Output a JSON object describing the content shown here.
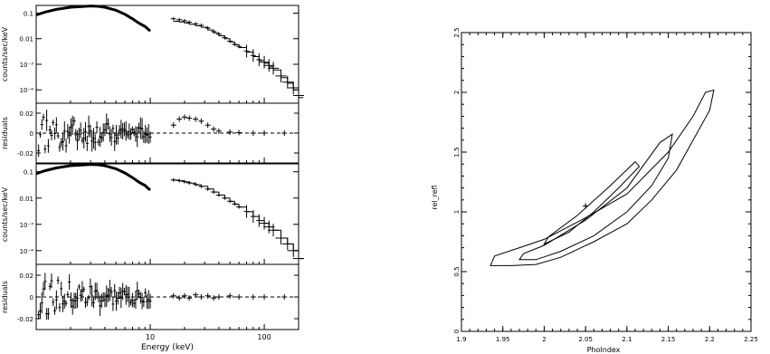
{
  "chart_data": [
    {
      "type": "scatter",
      "panel": "spectrum-top",
      "ylabel": "counts/sec/keV",
      "xscale": "log",
      "yscale": "log",
      "xlim": [
        1,
        200
      ],
      "ylim": [
        3e-05,
        0.2
      ],
      "yticks": [
        {
          "v": 0.1,
          "label": "0.1"
        },
        {
          "v": 0.01,
          "label": "0.01"
        },
        {
          "v": 0.001,
          "label": "10⁻³"
        },
        {
          "v": 0.0001,
          "label": "10⁻⁴"
        }
      ],
      "series": [
        {
          "kind": "low",
          "x": [
            1.0,
            1.2,
            1.5,
            2.0,
            2.5,
            3.0,
            3.5,
            4.0,
            5.0,
            6.0,
            7.0,
            8.0,
            9.0,
            10.0
          ],
          "y": [
            0.085,
            0.11,
            0.14,
            0.17,
            0.18,
            0.19,
            0.185,
            0.17,
            0.13,
            0.09,
            0.06,
            0.04,
            0.03,
            0.02
          ]
        },
        {
          "kind": "high",
          "x": [
            16,
            18,
            20,
            22,
            25,
            28,
            32,
            36,
            40,
            45,
            50,
            55,
            60,
            70,
            80,
            90,
            100,
            110,
            120,
            140,
            160,
            180,
            200
          ],
          "y": [
            0.048,
            0.045,
            0.041,
            0.037,
            0.032,
            0.028,
            0.022,
            0.017,
            0.013,
            0.01,
            0.0075,
            0.0058,
            0.0045,
            0.003,
            0.002,
            0.0014,
            0.0011,
            0.0008,
            0.0006,
            0.0003,
            0.00018,
            0.0001,
            5e-05
          ],
          "data_y": [
            0.06,
            0.055,
            0.05,
            0.044,
            0.038,
            0.033,
            0.026,
            0.019,
            0.015,
            0.011,
            0.008,
            0.006,
            0.005,
            0.0033,
            0.0022,
            0.0015,
            0.0012,
            0.0009,
            0.0007,
            0.00035,
            0.0002,
            0.00012,
            6e-05
          ]
        }
      ]
    },
    {
      "type": "scatter",
      "panel": "residuals-top",
      "ylabel": "residuals",
      "xscale": "log",
      "xlim": [
        1,
        200
      ],
      "ylim": [
        -0.03,
        0.03
      ],
      "yticks": [
        {
          "v": 0.02,
          "label": "0.02"
        },
        {
          "v": 0.0,
          "label": "0"
        },
        {
          "v": -0.02,
          "label": "-0.02"
        }
      ],
      "points": [
        [
          16,
          0.008
        ],
        [
          18,
          0.014
        ],
        [
          20,
          0.016
        ],
        [
          22,
          0.015
        ],
        [
          25,
          0.014
        ],
        [
          28,
          0.012
        ],
        [
          32,
          0.008
        ],
        [
          36,
          0.004
        ],
        [
          40,
          0.002
        ],
        [
          50,
          0.001
        ],
        [
          60,
          0.0005
        ],
        [
          80,
          0.0
        ],
        [
          100,
          0.0
        ],
        [
          150,
          0.0
        ]
      ]
    },
    {
      "type": "scatter",
      "panel": "spectrum-bottom",
      "ylabel": "counts/sec/keV",
      "xscale": "log",
      "yscale": "log",
      "xlim": [
        1,
        200
      ],
      "ylim": [
        3e-05,
        0.2
      ],
      "yticks": [
        {
          "v": 0.1,
          "label": "0.1"
        },
        {
          "v": 0.01,
          "label": "0.01"
        },
        {
          "v": 0.001,
          "label": "10⁻³"
        },
        {
          "v": 0.0001,
          "label": "10⁻⁴"
        }
      ],
      "series": [
        {
          "kind": "low",
          "x": [
            1.0,
            1.2,
            1.5,
            2.0,
            2.5,
            3.0,
            3.5,
            4.0,
            5.0,
            6.0,
            7.0,
            8.0,
            9.0,
            10.0
          ],
          "y": [
            0.085,
            0.11,
            0.14,
            0.17,
            0.18,
            0.19,
            0.185,
            0.17,
            0.13,
            0.09,
            0.06,
            0.04,
            0.03,
            0.02
          ]
        },
        {
          "kind": "high",
          "x": [
            16,
            18,
            20,
            22,
            25,
            28,
            32,
            36,
            40,
            45,
            50,
            55,
            60,
            70,
            80,
            90,
            100,
            110,
            120,
            140,
            160,
            180,
            200
          ],
          "y": [
            0.048,
            0.045,
            0.041,
            0.037,
            0.032,
            0.028,
            0.022,
            0.017,
            0.013,
            0.01,
            0.0075,
            0.0058,
            0.0045,
            0.003,
            0.002,
            0.0014,
            0.0011,
            0.0008,
            0.0006,
            0.0003,
            0.00018,
            0.0001,
            5e-05
          ],
          "data_y": [
            0.049,
            0.046,
            0.042,
            0.038,
            0.033,
            0.028,
            0.022,
            0.017,
            0.013,
            0.01,
            0.0076,
            0.006,
            0.0046,
            0.0031,
            0.002,
            0.0014,
            0.0011,
            0.0008,
            0.0006,
            0.0003,
            0.00018,
            0.0001,
            5e-05
          ]
        }
      ]
    },
    {
      "type": "scatter",
      "panel": "residuals-bottom",
      "ylabel": "residuals",
      "xlabel": "Energy (keV)",
      "xscale": "log",
      "xlim": [
        1,
        200
      ],
      "ylim": [
        -0.03,
        0.03
      ],
      "xticks": [
        {
          "v": 10,
          "label": "10"
        },
        {
          "v": 100,
          "label": "100"
        }
      ],
      "yticks": [
        {
          "v": 0.02,
          "label": "0.02"
        },
        {
          "v": 0.0,
          "label": "0"
        },
        {
          "v": -0.02,
          "label": "-0.02"
        }
      ],
      "points": [
        [
          16,
          0.001
        ],
        [
          18,
          -0.001
        ],
        [
          20,
          0.001
        ],
        [
          22,
          -0.001
        ],
        [
          25,
          0.002
        ],
        [
          28,
          0.0
        ],
        [
          32,
          0.001
        ],
        [
          36,
          -0.001
        ],
        [
          40,
          0.0
        ],
        [
          50,
          0.001
        ],
        [
          60,
          0.0
        ],
        [
          80,
          0.0
        ],
        [
          100,
          0.0
        ],
        [
          150,
          0.0
        ]
      ]
    },
    {
      "type": "line",
      "panel": "contour",
      "xlabel": "PhoIndex",
      "ylabel": "rel_refl",
      "xlim": [
        1.9,
        2.25
      ],
      "ylim": [
        0,
        2.5
      ],
      "xticks": [
        {
          "v": 1.9,
          "label": "1.9"
        },
        {
          "v": 1.95,
          "label": "1.95"
        },
        {
          "v": 2.0,
          "label": "2"
        },
        {
          "v": 2.05,
          "label": "2.05"
        },
        {
          "v": 2.1,
          "label": "2.1"
        },
        {
          "v": 2.15,
          "label": "2.15"
        },
        {
          "v": 2.2,
          "label": "2.2"
        },
        {
          "v": 2.25,
          "label": "2.25"
        }
      ],
      "yticks": [
        {
          "v": 0,
          "label": "0"
        },
        {
          "v": 0.5,
          "label": "0.5"
        },
        {
          "v": 1.0,
          "label": "1"
        },
        {
          "v": 1.5,
          "label": "1.5"
        },
        {
          "v": 2.0,
          "label": "2"
        },
        {
          "v": 2.5,
          "label": "2.5"
        }
      ],
      "best_fit": [
        2.05,
        1.05
      ],
      "series": [
        {
          "x": [
            1.935,
            1.94,
            1.97,
            2.0,
            2.05,
            2.1,
            2.15,
            2.18,
            2.195,
            2.205,
            2.2,
            2.18,
            2.16,
            2.13,
            2.1,
            2.06,
            2.02,
            1.99,
            1.96,
            1.935
          ],
          "y": [
            0.55,
            0.63,
            0.7,
            0.77,
            0.95,
            1.15,
            1.5,
            1.8,
            2.0,
            2.02,
            1.85,
            1.6,
            1.35,
            1.1,
            0.9,
            0.75,
            0.62,
            0.56,
            0.55,
            0.55
          ]
        },
        {
          "x": [
            1.97,
            1.975,
            2.0,
            2.05,
            2.1,
            2.14,
            2.155,
            2.15,
            2.13,
            2.1,
            2.06,
            2.02,
            1.99,
            1.97
          ],
          "y": [
            0.6,
            0.65,
            0.72,
            0.93,
            1.2,
            1.58,
            1.65,
            1.45,
            1.22,
            1.0,
            0.8,
            0.67,
            0.6,
            0.6
          ]
        },
        {
          "x": [
            2.0,
            2.005,
            2.04,
            2.08,
            2.11,
            2.115,
            2.09,
            2.06,
            2.03,
            2.0
          ],
          "y": [
            0.73,
            0.79,
            0.97,
            1.22,
            1.42,
            1.38,
            1.2,
            1.0,
            0.83,
            0.73
          ]
        }
      ]
    }
  ]
}
